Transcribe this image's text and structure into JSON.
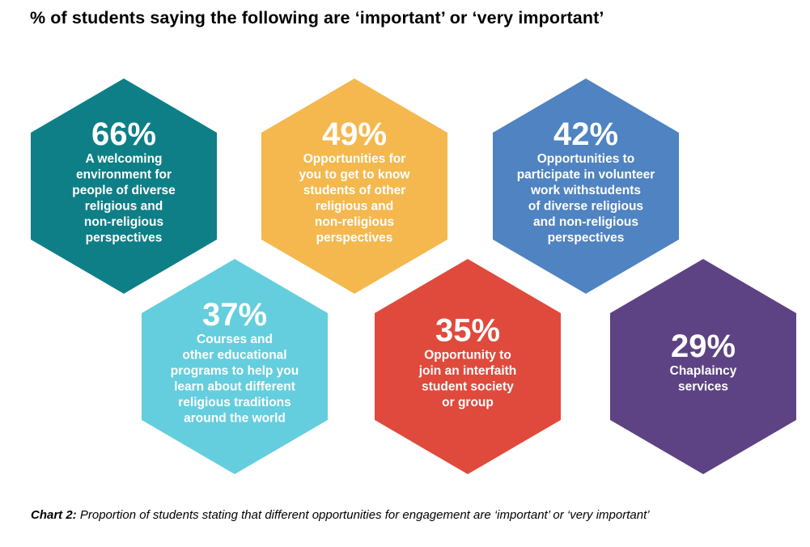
{
  "title": "% of students saying the following are ‘important’ or ‘very important’",
  "caption": {
    "label": "Chart 2:",
    "text": "Proportion of students stating that different opportunities for engagement are ‘important’ or ‘very important’"
  },
  "chart_data": {
    "type": "infographic",
    "title": "% of students saying the following are ‘important’ or ‘very important’",
    "unit": "%",
    "items": [
      {
        "value": 66,
        "label": "66%",
        "description_lines": [
          "A welcoming",
          "environment for",
          "people of diverse",
          "religious and",
          "non-religious",
          "perspectives"
        ],
        "color": "#0e7f86"
      },
      {
        "value": 49,
        "label": "49%",
        "description_lines": [
          "Opportunities for",
          "you to get to know",
          "students of other",
          "religious and",
          "non-religious",
          "perspectives"
        ],
        "color": "#f4b84e"
      },
      {
        "value": 42,
        "label": "42%",
        "description_lines": [
          "Opportunities to",
          "participate in volunteer",
          "work withstudents",
          "of diverse religious",
          "and non-religious",
          "perspectives"
        ],
        "color": "#4f83c1"
      },
      {
        "value": 37,
        "label": "37%",
        "description_lines": [
          "Courses and",
          "other educational",
          "programs to help you",
          "learn about different",
          "religious traditions",
          "around the world"
        ],
        "color": "#64cede"
      },
      {
        "value": 35,
        "label": "35%",
        "description_lines": [
          "Opportunity to",
          "join an interfaith",
          "student society",
          "or group"
        ],
        "color": "#df4a3c"
      },
      {
        "value": 29,
        "label": "29%",
        "description_lines": [
          "Chaplaincy",
          "services"
        ],
        "color": "#5d4383"
      }
    ]
  }
}
